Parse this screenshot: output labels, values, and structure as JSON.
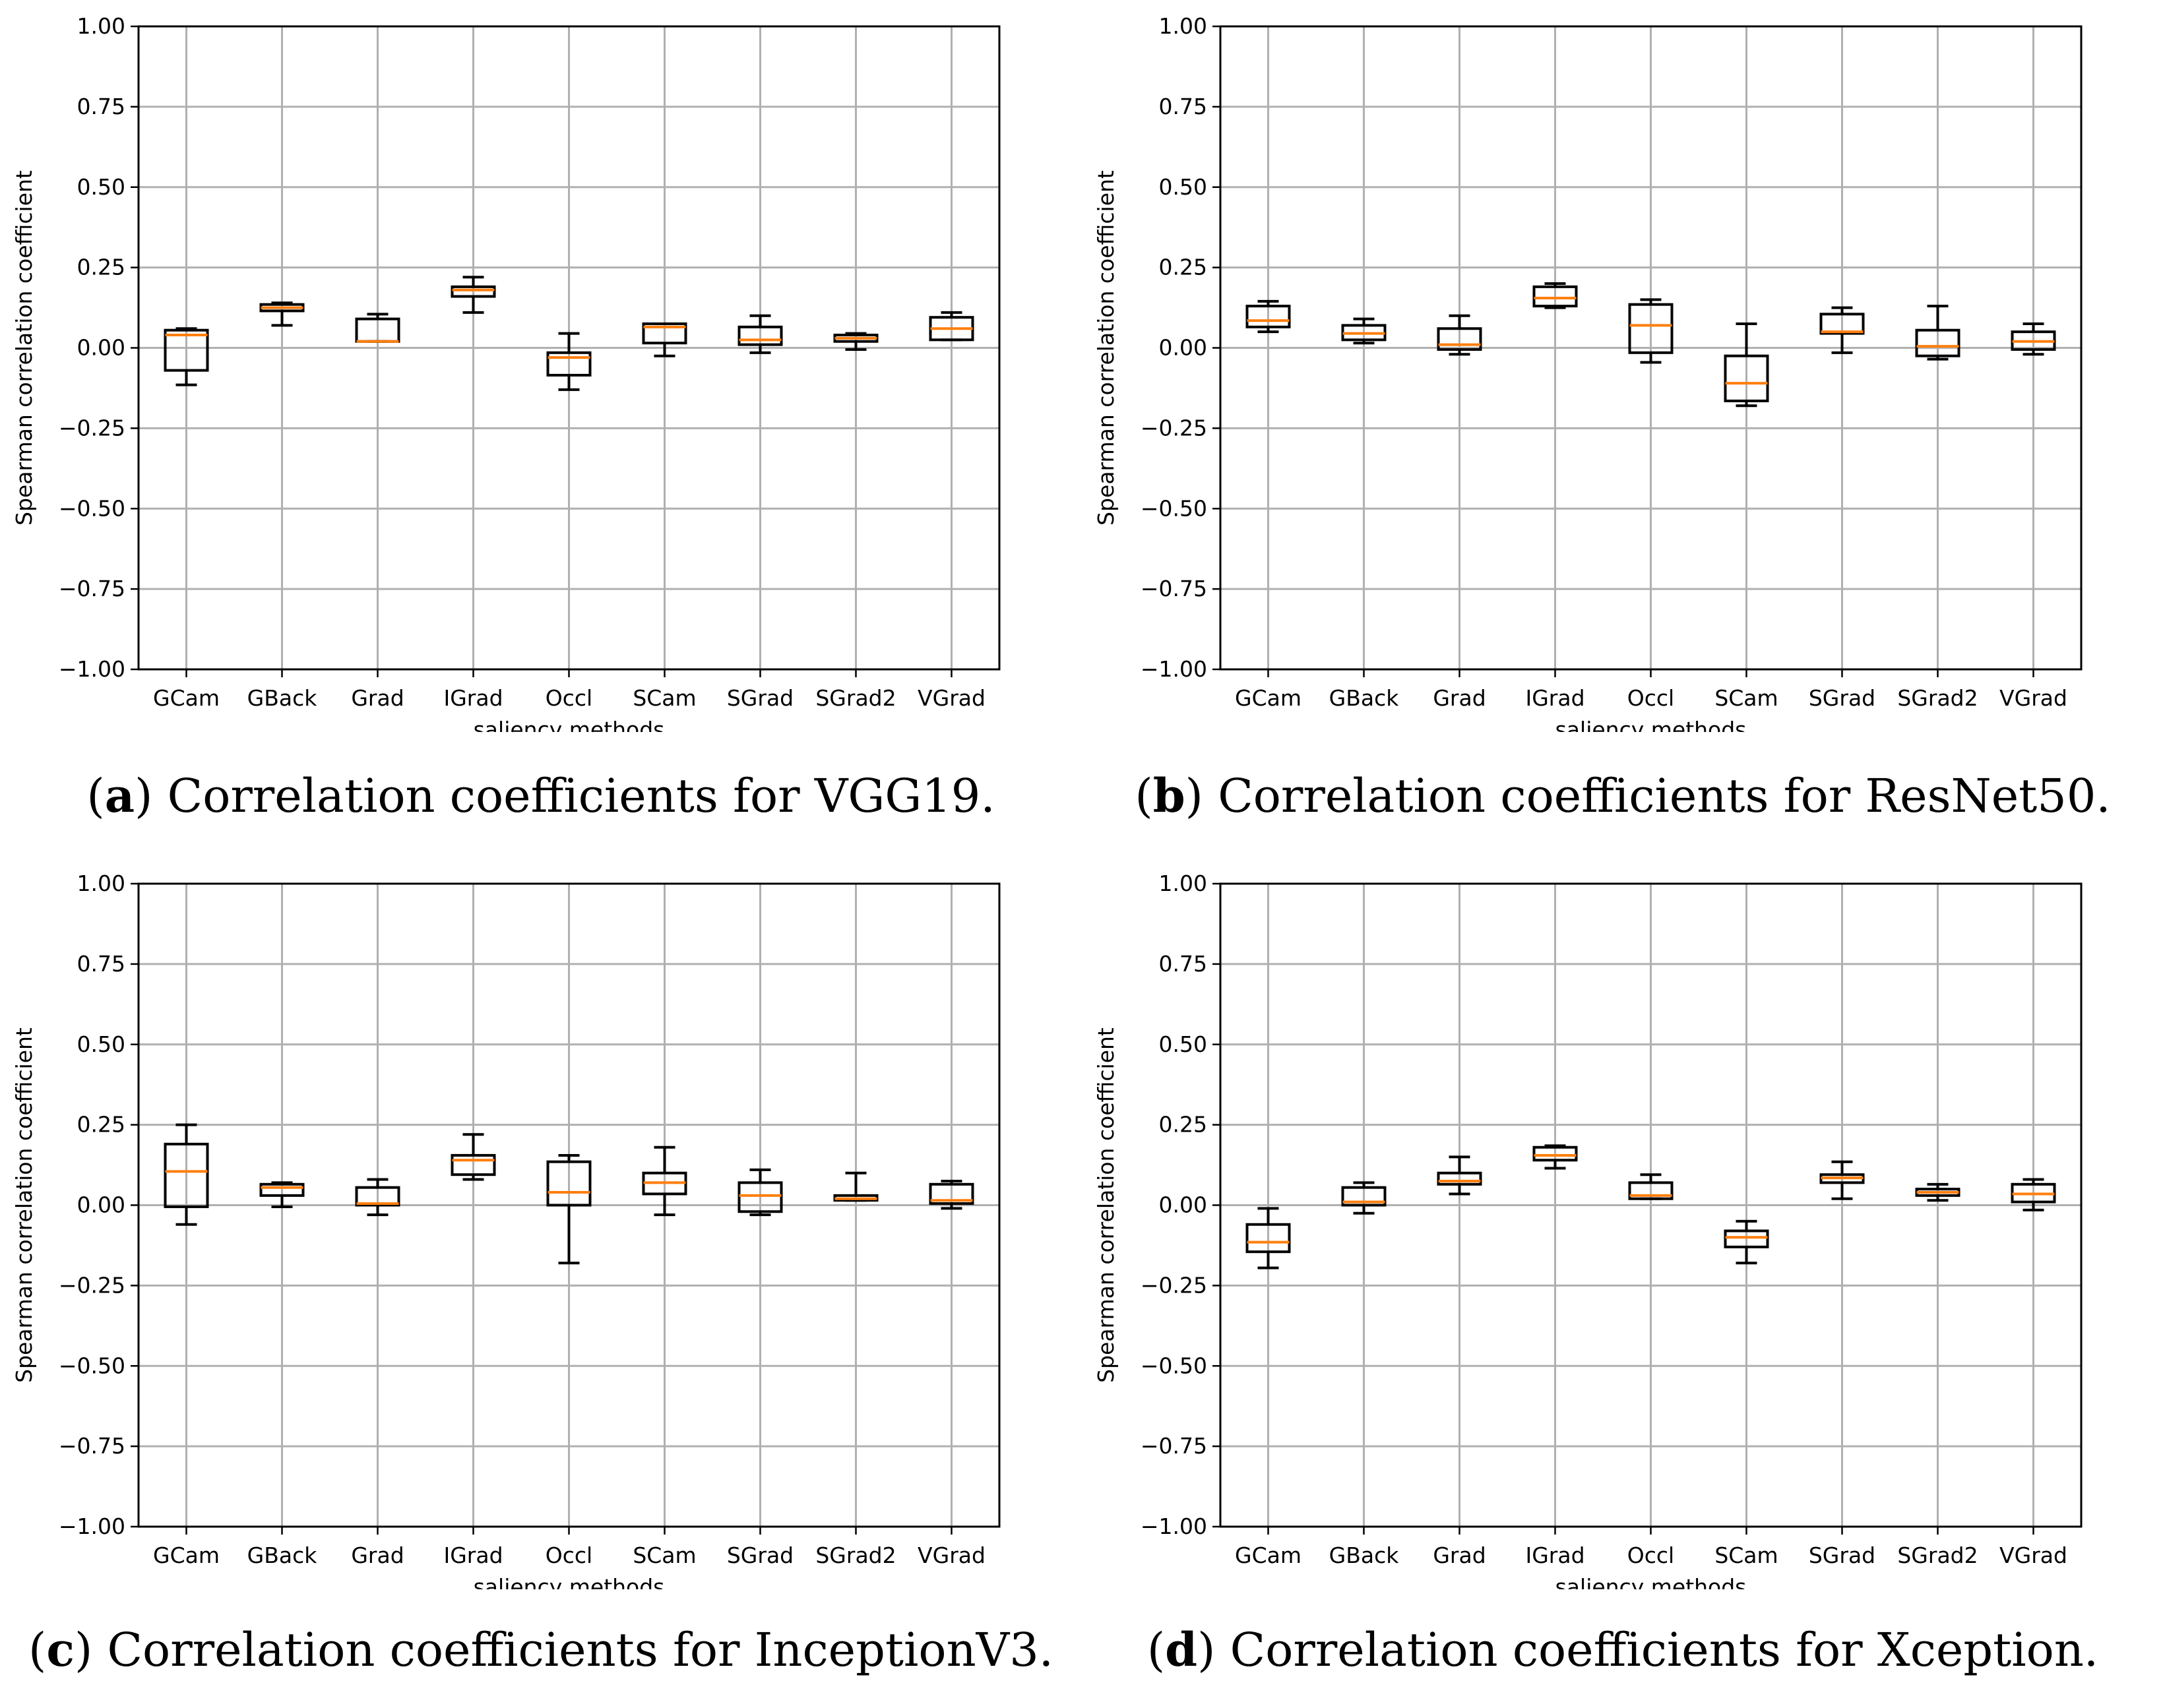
{
  "chart_data": [
    {
      "type": "boxplot",
      "panel_label": "a",
      "caption": "Correlation coefficients for VGG19.",
      "xlabel": "saliency methods",
      "ylabel": "Spearman correlation coefficient",
      "ylim": [
        -1.0,
        1.0
      ],
      "yticks": [
        "1.00",
        "0.75",
        "0.50",
        "0.25",
        "0.00",
        "−0.25",
        "−0.50",
        "−0.75",
        "−1.00"
      ],
      "grid": true,
      "categories": [
        "GCam",
        "GBack",
        "Grad",
        "IGrad",
        "Occl",
        "SCam",
        "SGrad",
        "SGrad2",
        "VGrad"
      ],
      "boxes": [
        {
          "whislo": -0.115,
          "q1": -0.07,
          "med": 0.04,
          "q3": 0.055,
          "whishi": 0.06
        },
        {
          "whislo": 0.07,
          "q1": 0.115,
          "med": 0.125,
          "q3": 0.135,
          "whishi": 0.14
        },
        {
          "whislo": 0.02,
          "q1": 0.02,
          "med": 0.02,
          "q3": 0.09,
          "whishi": 0.105
        },
        {
          "whislo": 0.11,
          "q1": 0.16,
          "med": 0.18,
          "q3": 0.19,
          "whishi": 0.22
        },
        {
          "whislo": -0.13,
          "q1": -0.085,
          "med": -0.03,
          "q3": -0.015,
          "whishi": 0.045
        },
        {
          "whislo": -0.025,
          "q1": 0.015,
          "med": 0.065,
          "q3": 0.075,
          "whishi": 0.075
        },
        {
          "whislo": -0.015,
          "q1": 0.01,
          "med": 0.025,
          "q3": 0.065,
          "whishi": 0.1
        },
        {
          "whislo": -0.005,
          "q1": 0.02,
          "med": 0.03,
          "q3": 0.04,
          "whishi": 0.045
        },
        {
          "whislo": 0.025,
          "q1": 0.025,
          "med": 0.06,
          "q3": 0.095,
          "whishi": 0.11
        }
      ]
    },
    {
      "type": "boxplot",
      "panel_label": "b",
      "caption": "Correlation coefficients for ResNet50.",
      "xlabel": "saliency methods",
      "ylabel": "Spearman correlation coefficient",
      "ylim": [
        -1.0,
        1.0
      ],
      "yticks": [
        "1.00",
        "0.75",
        "0.50",
        "0.25",
        "0.00",
        "−0.25",
        "−0.50",
        "−0.75",
        "−1.00"
      ],
      "grid": true,
      "categories": [
        "GCam",
        "GBack",
        "Grad",
        "IGrad",
        "Occl",
        "SCam",
        "SGrad",
        "SGrad2",
        "VGrad"
      ],
      "boxes": [
        {
          "whislo": 0.05,
          "q1": 0.065,
          "med": 0.085,
          "q3": 0.13,
          "whishi": 0.145
        },
        {
          "whislo": 0.015,
          "q1": 0.025,
          "med": 0.045,
          "q3": 0.07,
          "whishi": 0.09
        },
        {
          "whislo": -0.02,
          "q1": -0.005,
          "med": 0.01,
          "q3": 0.06,
          "whishi": 0.1
        },
        {
          "whislo": 0.125,
          "q1": 0.13,
          "med": 0.155,
          "q3": 0.19,
          "whishi": 0.2
        },
        {
          "whislo": -0.045,
          "q1": -0.015,
          "med": 0.07,
          "q3": 0.135,
          "whishi": 0.15
        },
        {
          "whislo": -0.18,
          "q1": -0.165,
          "med": -0.11,
          "q3": -0.025,
          "whishi": 0.075
        },
        {
          "whislo": -0.015,
          "q1": 0.045,
          "med": 0.05,
          "q3": 0.105,
          "whishi": 0.125
        },
        {
          "whislo": -0.035,
          "q1": -0.025,
          "med": 0.005,
          "q3": 0.055,
          "whishi": 0.13
        },
        {
          "whislo": -0.02,
          "q1": -0.005,
          "med": 0.02,
          "q3": 0.05,
          "whishi": 0.075
        }
      ]
    },
    {
      "type": "boxplot",
      "panel_label": "c",
      "caption": "Correlation coefficients for InceptionV3.",
      "xlabel": "saliency methods",
      "ylabel": "Spearman correlation coefficient",
      "ylim": [
        -1.0,
        1.0
      ],
      "yticks": [
        "1.00",
        "0.75",
        "0.50",
        "0.25",
        "0.00",
        "−0.25",
        "−0.50",
        "−0.75",
        "−1.00"
      ],
      "grid": true,
      "categories": [
        "GCam",
        "GBack",
        "Grad",
        "IGrad",
        "Occl",
        "SCam",
        "SGrad",
        "SGrad2",
        "VGrad"
      ],
      "boxes": [
        {
          "whislo": -0.06,
          "q1": -0.005,
          "med": 0.105,
          "q3": 0.19,
          "whishi": 0.25
        },
        {
          "whislo": -0.005,
          "q1": 0.03,
          "med": 0.055,
          "q3": 0.065,
          "whishi": 0.07
        },
        {
          "whislo": -0.03,
          "q1": 0.0,
          "med": 0.005,
          "q3": 0.055,
          "whishi": 0.08
        },
        {
          "whislo": 0.08,
          "q1": 0.095,
          "med": 0.14,
          "q3": 0.155,
          "whishi": 0.22
        },
        {
          "whislo": -0.18,
          "q1": 0.0,
          "med": 0.04,
          "q3": 0.135,
          "whishi": 0.155
        },
        {
          "whislo": -0.03,
          "q1": 0.035,
          "med": 0.07,
          "q3": 0.1,
          "whishi": 0.18
        },
        {
          "whislo": -0.03,
          "q1": -0.02,
          "med": 0.03,
          "q3": 0.07,
          "whishi": 0.11
        },
        {
          "whislo": 0.015,
          "q1": 0.015,
          "med": 0.02,
          "q3": 0.03,
          "whishi": 0.1
        },
        {
          "whislo": -0.01,
          "q1": 0.005,
          "med": 0.015,
          "q3": 0.065,
          "whishi": 0.075
        }
      ]
    },
    {
      "type": "boxplot",
      "panel_label": "d",
      "caption": "Correlation coefficients for Xception.",
      "xlabel": "saliency methods",
      "ylabel": "Spearman correlation coefficient",
      "ylim": [
        -1.0,
        1.0
      ],
      "yticks": [
        "1.00",
        "0.75",
        "0.50",
        "0.25",
        "0.00",
        "−0.25",
        "−0.50",
        "−0.75",
        "−1.00"
      ],
      "grid": true,
      "categories": [
        "GCam",
        "GBack",
        "Grad",
        "IGrad",
        "Occl",
        "SCam",
        "SGrad",
        "SGrad2",
        "VGrad"
      ],
      "boxes": [
        {
          "whislo": -0.195,
          "q1": -0.145,
          "med": -0.115,
          "q3": -0.06,
          "whishi": -0.01
        },
        {
          "whislo": -0.025,
          "q1": 0.0,
          "med": 0.01,
          "q3": 0.055,
          "whishi": 0.07
        },
        {
          "whislo": 0.035,
          "q1": 0.065,
          "med": 0.075,
          "q3": 0.1,
          "whishi": 0.15
        },
        {
          "whislo": 0.115,
          "q1": 0.14,
          "med": 0.155,
          "q3": 0.18,
          "whishi": 0.185
        },
        {
          "whislo": 0.02,
          "q1": 0.02,
          "med": 0.03,
          "q3": 0.07,
          "whishi": 0.095
        },
        {
          "whislo": -0.18,
          "q1": -0.13,
          "med": -0.1,
          "q3": -0.08,
          "whishi": -0.05
        },
        {
          "whislo": 0.02,
          "q1": 0.07,
          "med": 0.085,
          "q3": 0.095,
          "whishi": 0.135
        },
        {
          "whislo": 0.015,
          "q1": 0.03,
          "med": 0.04,
          "q3": 0.05,
          "whishi": 0.065
        },
        {
          "whislo": -0.015,
          "q1": 0.01,
          "med": 0.035,
          "q3": 0.065,
          "whishi": 0.08
        }
      ]
    }
  ],
  "colors": {
    "box": "#000000",
    "median": "#ff7f0e",
    "grid": "#b0b0b0",
    "text": "#000000"
  }
}
